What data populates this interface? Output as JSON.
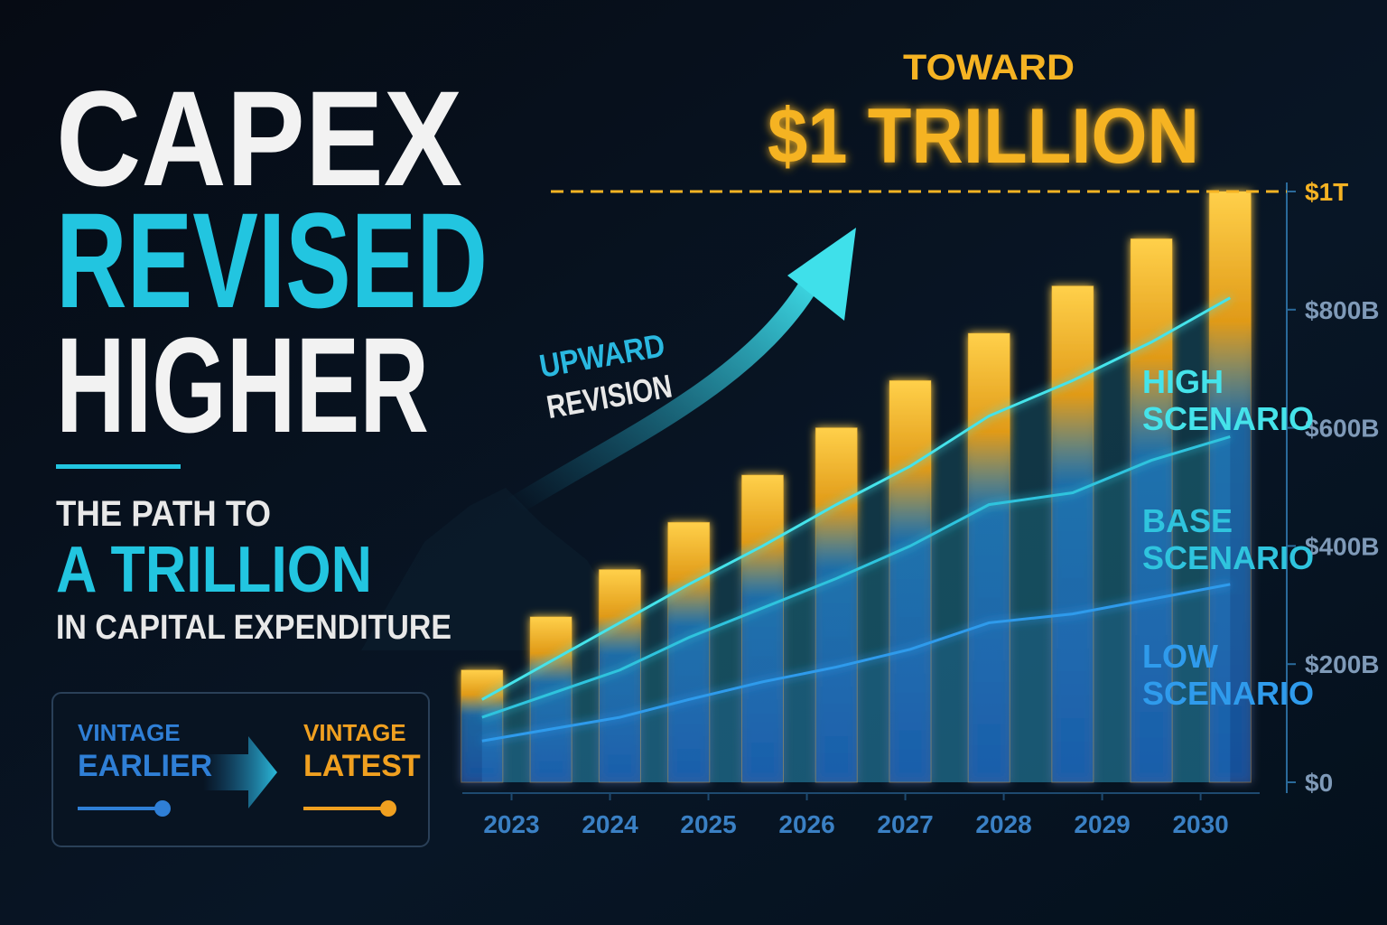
{
  "chart_data": {
    "type": "bar_line",
    "title_lines": [
      "CAPEX",
      "REVISED",
      "HIGHER"
    ],
    "subtitle_lines": [
      "THE PATH TO",
      "A TRILLION",
      "IN CAPITAL EXPENDITURE"
    ],
    "headline": {
      "top": "TOWARD",
      "main": "$1 TRILLION"
    },
    "arrow_label": [
      "UPWARD",
      "REVISION"
    ],
    "x": [
      2022.7,
      2023.4,
      2024.1,
      2024.8,
      2025.55,
      2026.3,
      2027.05,
      2027.85,
      2028.7,
      2029.5,
      2030.3
    ],
    "xlim": [
      2022.5,
      2030.6
    ],
    "xticks": [
      2023,
      2024,
      2025,
      2026,
      2027,
      2028,
      2029,
      2030
    ],
    "ylim": [
      0,
      1000
    ],
    "yticks": [
      {
        "value": 0,
        "label": "$0"
      },
      {
        "value": 200,
        "label": "$200B"
      },
      {
        "value": 400,
        "label": "$400B"
      },
      {
        "value": 600,
        "label": "$600B"
      },
      {
        "value": 800,
        "label": "$800B"
      },
      {
        "value": 1000,
        "label": "$1T"
      }
    ],
    "bars": {
      "color": "#f5b323",
      "values": [
        190,
        280,
        360,
        440,
        520,
        600,
        680,
        760,
        840,
        920,
        1000
      ]
    },
    "series": [
      {
        "name": "HIGH SCENARIO",
        "color": "#45e3ea",
        "values": [
          140,
          205,
          270,
          335,
          400,
          470,
          535,
          620,
          680,
          745,
          820
        ]
      },
      {
        "name": "BASE SCENARIO",
        "color": "#2fc4de",
        "values": [
          110,
          150,
          190,
          245,
          295,
          345,
          400,
          470,
          490,
          545,
          585
        ]
      },
      {
        "name": "LOW SCENARIO",
        "color": "#2f9bec",
        "values": [
          70,
          90,
          110,
          140,
          170,
          195,
          225,
          270,
          285,
          310,
          335
        ]
      }
    ],
    "reference_line": {
      "value": 1000,
      "color": "#f5b323"
    },
    "legend": [
      {
        "label": "VINTAGE EARLIER",
        "color": "#2f7fd6"
      },
      {
        "label": "VINTAGE LATEST",
        "color": "#f0a020"
      }
    ]
  }
}
